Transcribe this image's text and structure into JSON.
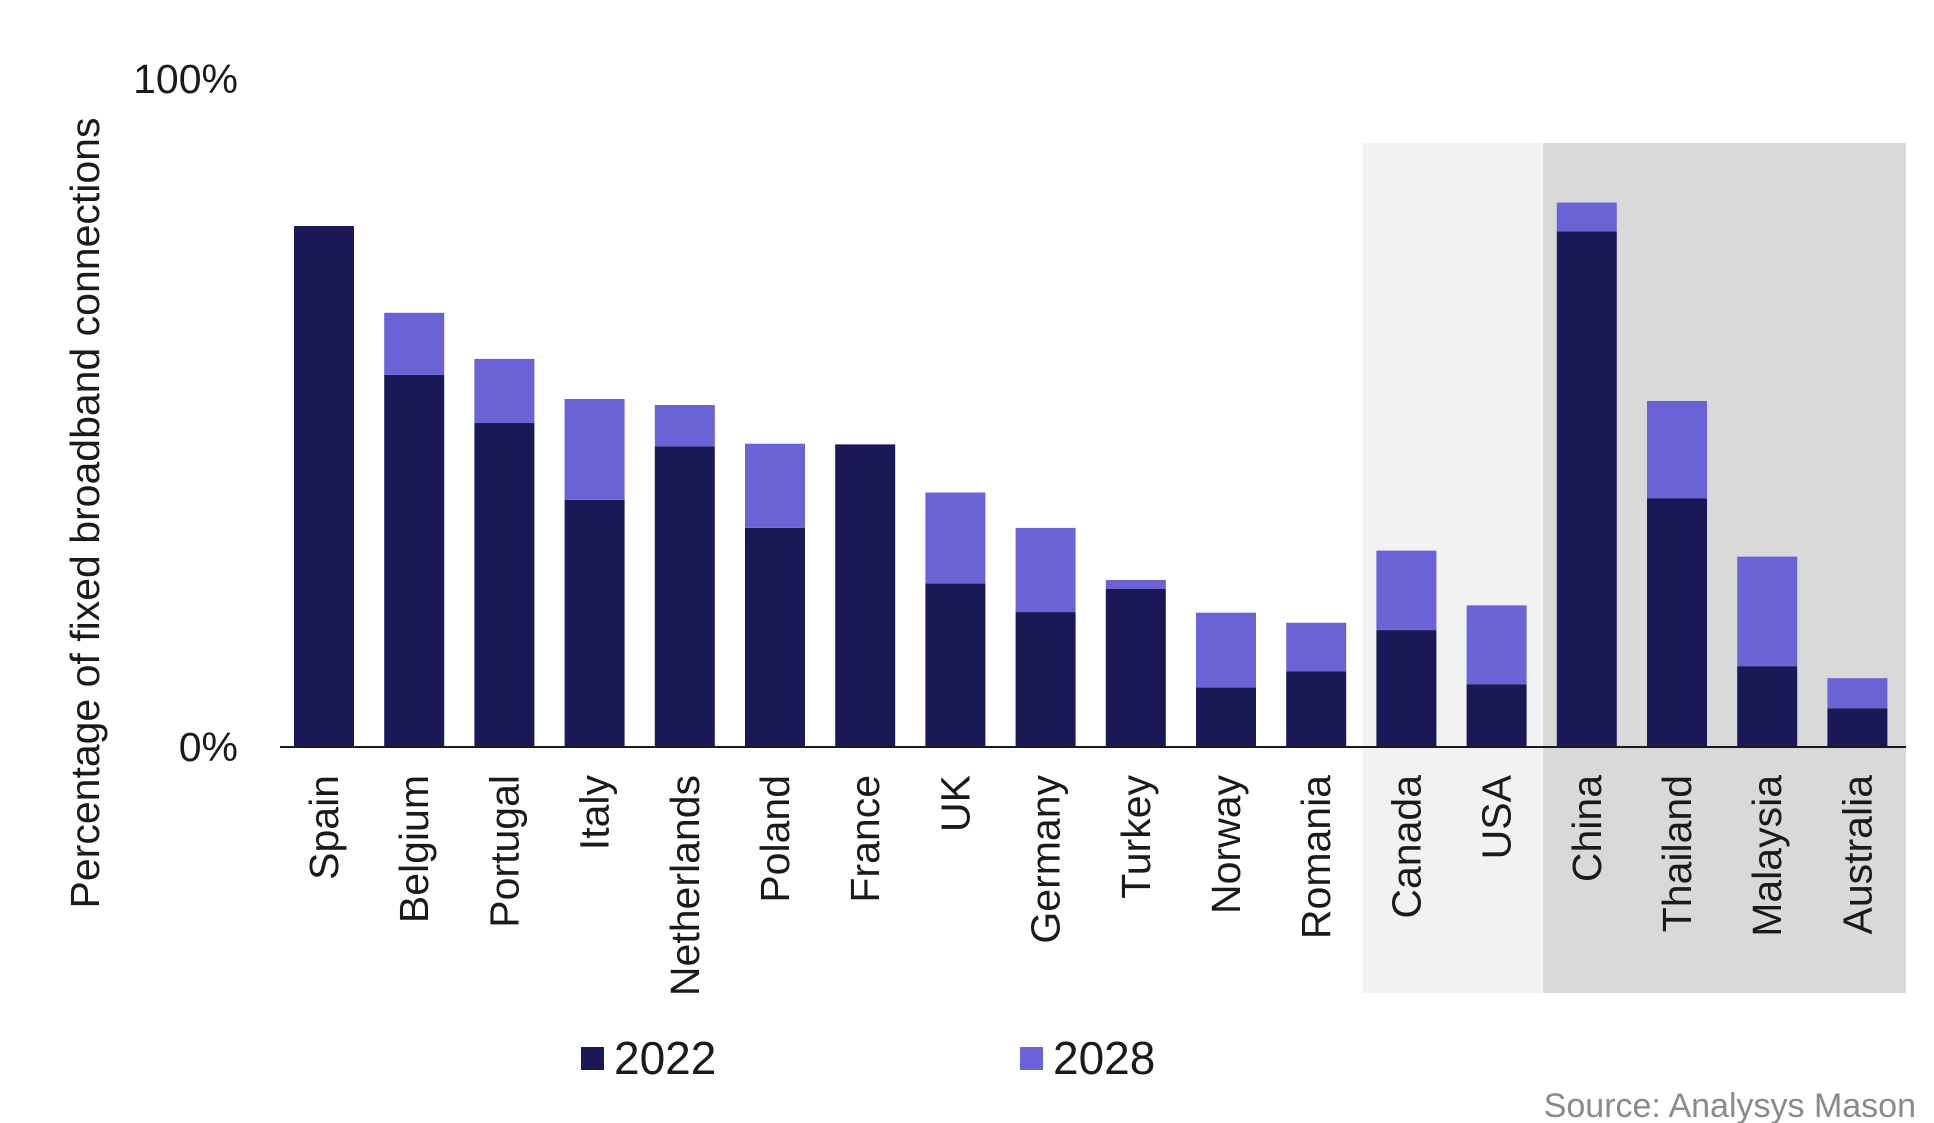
{
  "chart_data": {
    "type": "bar",
    "stacked": true,
    "ylabel": "Percentage of fixed broadband connections",
    "xlabel": "",
    "ylim": [
      0,
      100
    ],
    "ytick_labels": [
      "0%",
      "100%"
    ],
    "categories": [
      "Spain",
      "Belgium",
      "Portugal",
      "Italy",
      "Netherlands",
      "Poland",
      "France",
      "UK",
      "Germany",
      "Turkey",
      "Norway",
      "Romania",
      "Canada",
      "USA",
      "China",
      "Thailand",
      "Malaysia",
      "Australia"
    ],
    "series": [
      {
        "name": "2022",
        "color": "#1b1858",
        "values": [
          78,
          55.7,
          48.5,
          37,
          45,
          32.8,
          45.3,
          24.5,
          20.2,
          23.7,
          8.9,
          11.3,
          17.5,
          9.4,
          77.2,
          37.2,
          12.1,
          5.8
        ]
      },
      {
        "name": "2028",
        "color": "#6a63d6",
        "values": [
          0,
          9.3,
          9.6,
          15.1,
          6.2,
          12.6,
          0,
          13.6,
          12.6,
          1.3,
          11.2,
          7.3,
          11.9,
          11.8,
          4.3,
          14.6,
          16.4,
          4.5
        ]
      }
    ],
    "highlight_groups": [
      {
        "categories": [
          "Canada",
          "USA"
        ],
        "color": "#f2f2f2"
      },
      {
        "categories": [
          "China",
          "Thailand",
          "Malaysia",
          "Australia"
        ],
        "color": "#d9d9d9"
      }
    ],
    "grid": false,
    "legend": "bottom",
    "source": "Source: Analysys Mason"
  }
}
